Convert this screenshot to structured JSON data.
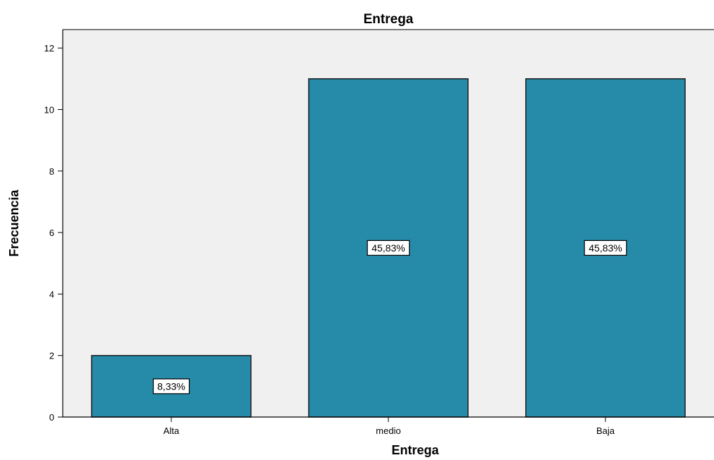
{
  "chart_data": {
    "type": "bar",
    "title": "Entrega",
    "xlabel": "Entrega",
    "ylabel": "Frecuencia",
    "categories": [
      "Alta",
      "medio",
      "Baja"
    ],
    "values": [
      2,
      11,
      11
    ],
    "data_labels": [
      "8,33%",
      "45,83%",
      "45,83%"
    ],
    "ylim": [
      0,
      12.6
    ],
    "yticks": [
      0,
      2,
      4,
      6,
      8,
      10,
      12
    ],
    "grid": false,
    "legend": "none",
    "colors": {
      "bar_fill": "#268aa9",
      "bar_stroke": "#1c1c1c",
      "plot_background": "#f0f0f0",
      "axis": "#000000"
    }
  }
}
